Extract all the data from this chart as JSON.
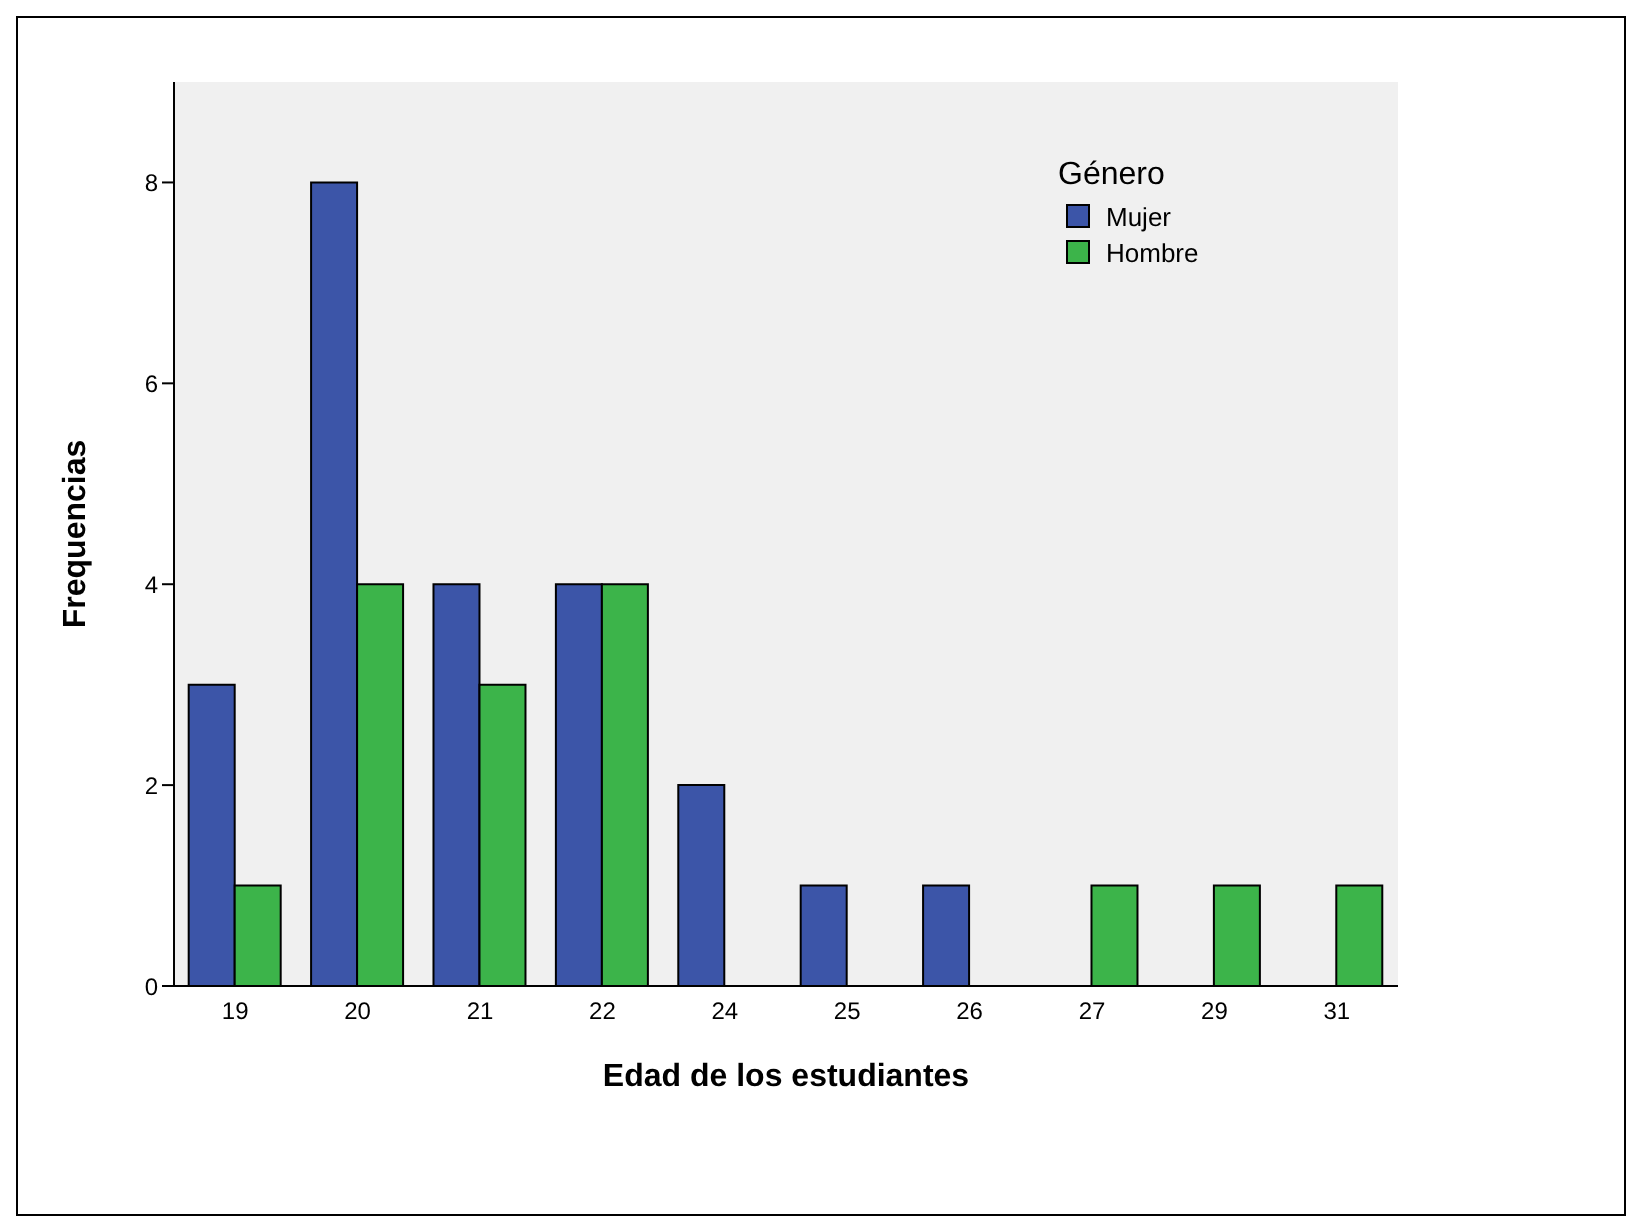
{
  "chart_data": {
    "type": "bar",
    "xlabel": "Edad de los estudiantes",
    "ylabel": "Frequencias",
    "legend_title": "Género",
    "categories": [
      "19",
      "20",
      "21",
      "22",
      "24",
      "25",
      "26",
      "27",
      "29",
      "31"
    ],
    "series": [
      {
        "name": "Mujer",
        "color": "#3c55a8",
        "values": [
          3,
          8,
          4,
          4,
          2,
          1,
          1,
          null,
          null,
          null
        ]
      },
      {
        "name": "Hombre",
        "color": "#3cb44a",
        "values": [
          1,
          4,
          3,
          4,
          null,
          null,
          null,
          1,
          1,
          1
        ]
      }
    ],
    "ylim": [
      0,
      9
    ],
    "yticks": [
      0,
      2,
      4,
      6,
      8
    ],
    "grid": false,
    "legend": "top right"
  }
}
